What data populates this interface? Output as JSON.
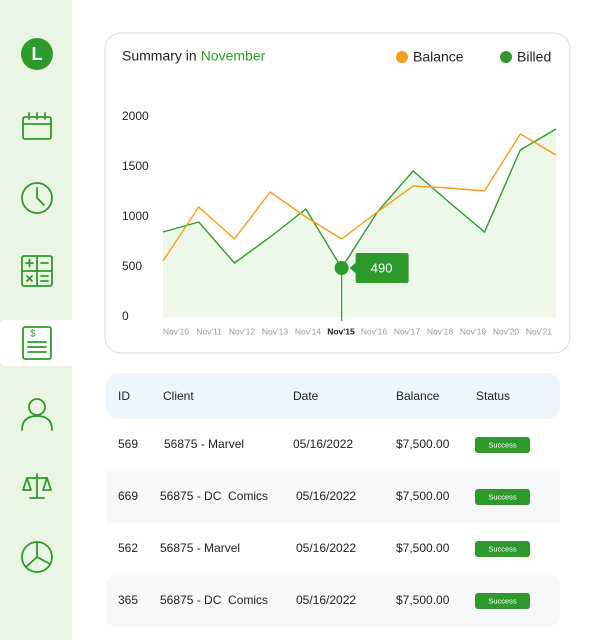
{
  "sidebar": {
    "logo": "L"
  },
  "chart_data": {
    "type": "line",
    "title": "Summary in",
    "title_highlight": "November",
    "categories": [
      "Nov'10",
      "Nov'11",
      "Nov'12",
      "Nov'13",
      "Nov'14",
      "Nov'15",
      "Nov'16",
      "Nov'17",
      "Nov'18",
      "Nov'19",
      "Nov'20",
      "Nov'21"
    ],
    "series": [
      {
        "name": "Balance",
        "color": "#f0a01e",
        "values": [
          560,
          1100,
          780,
          1250,
          1000,
          780,
          1050,
          1310,
          1290,
          1260,
          1830,
          1620
        ]
      },
      {
        "name": "Billed",
        "color": "#2e9a2e",
        "values": [
          850,
          950,
          540,
          800,
          1080,
          490,
          1050,
          1460,
          1150,
          850,
          1670,
          1880
        ]
      }
    ],
    "ylim": [
      0,
      2000
    ],
    "yticks": [
      0,
      500,
      1000,
      1500,
      2000
    ],
    "legend": "top-right",
    "grid": false
  },
  "table": {
    "columns": [
      "ID",
      "Client",
      "Date",
      "Balance",
      "Status"
    ],
    "rows": [
      [
        "569",
        "56875 - Marvel",
        "05/16/2022",
        "$7,500.00",
        "Success"
      ],
      [
        "669",
        "56875 - DC  Comics",
        "05/16/2022",
        "$7,500.00",
        "Success"
      ],
      [
        "562",
        "56875 - Marvel",
        "05/16/2022",
        "$7,500.00",
        "Success"
      ],
      [
        "365",
        "56875 - DC  Comics",
        "05/16/2022",
        "$7,500.00",
        "Success"
      ]
    ]
  }
}
